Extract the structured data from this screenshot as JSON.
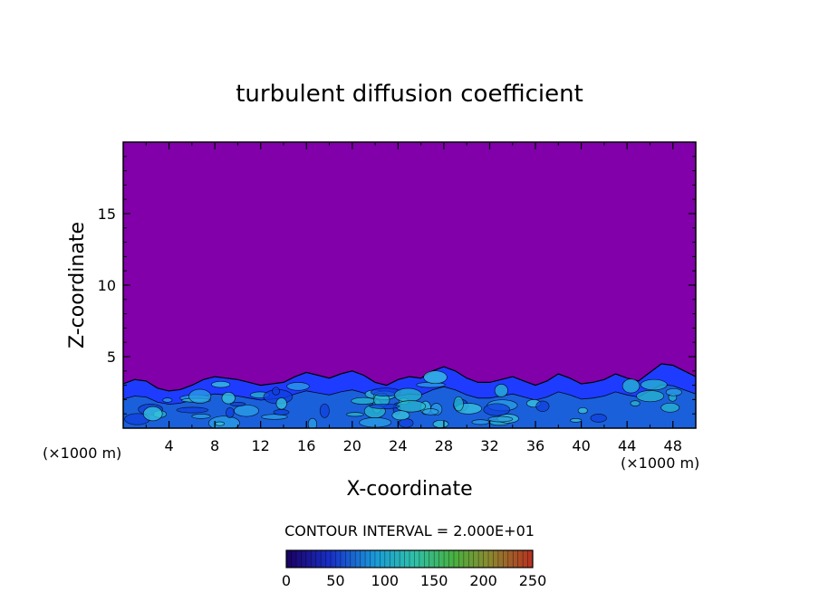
{
  "chart_data": {
    "type": "heatmap",
    "title": "turbulent diffusion coefficient",
    "xlabel": "X-coordinate",
    "ylabel": "Z-coordinate",
    "x_unit_left": "(×1000 m)",
    "x_unit_right": "(×1000 m)",
    "xlim": [
      0,
      50
    ],
    "ylim": [
      0,
      20
    ],
    "x_ticks": [
      4,
      8,
      12,
      16,
      20,
      24,
      28,
      32,
      36,
      40,
      44,
      48
    ],
    "x_tick_labels": [
      "4",
      "8",
      "12",
      "16",
      "20",
      "24",
      "28",
      "32",
      "36",
      "40",
      "44",
      "48"
    ],
    "y_ticks": [
      5,
      10,
      15
    ],
    "y_tick_labels": [
      "5",
      "10",
      "15"
    ],
    "contour_interval_text": "CONTOUR INTERVAL = 2.000E+01",
    "colorbar": {
      "min": 0,
      "max": 250,
      "tick_values": [
        0,
        50,
        100,
        150,
        200,
        250
      ],
      "tick_labels": [
        "0",
        "50",
        "100",
        "150",
        "200",
        "250"
      ]
    },
    "field_description": "near-zero background above ~4.5 km; turbulent layer (values up to ~100) below ~4.5 km",
    "boundary_layer_top_profile": {
      "x": [
        0,
        1,
        2,
        3,
        4,
        5,
        6,
        7,
        8,
        9,
        10,
        11,
        12,
        13,
        14,
        15,
        16,
        17,
        18,
        19,
        20,
        21,
        22,
        23,
        24,
        25,
        26,
        27,
        28,
        29,
        30,
        31,
        32,
        33,
        34,
        35,
        36,
        37,
        38,
        39,
        40,
        41,
        42,
        43,
        44,
        45,
        46,
        47,
        48,
        49,
        50
      ],
      "z": [
        3.1,
        3.4,
        3.3,
        2.8,
        2.6,
        2.7,
        3.0,
        3.4,
        3.6,
        3.5,
        3.4,
        3.2,
        3.0,
        3.1,
        3.2,
        3.6,
        3.9,
        3.7,
        3.5,
        3.8,
        4.0,
        3.7,
        3.2,
        3.0,
        3.4,
        3.6,
        3.5,
        4.0,
        4.3,
        4.0,
        3.5,
        3.2,
        3.2,
        3.4,
        3.6,
        3.3,
        3.0,
        3.3,
        3.8,
        3.5,
        3.1,
        3.2,
        3.4,
        3.8,
        3.5,
        3.3,
        3.9,
        4.5,
        4.4,
        4.0,
        3.6
      ]
    },
    "colors": {
      "background_field": "#8100aa",
      "layer_low": "#1e3cff",
      "layer_mid": "#1b64d8",
      "layer_high": "#37c8e0"
    }
  }
}
